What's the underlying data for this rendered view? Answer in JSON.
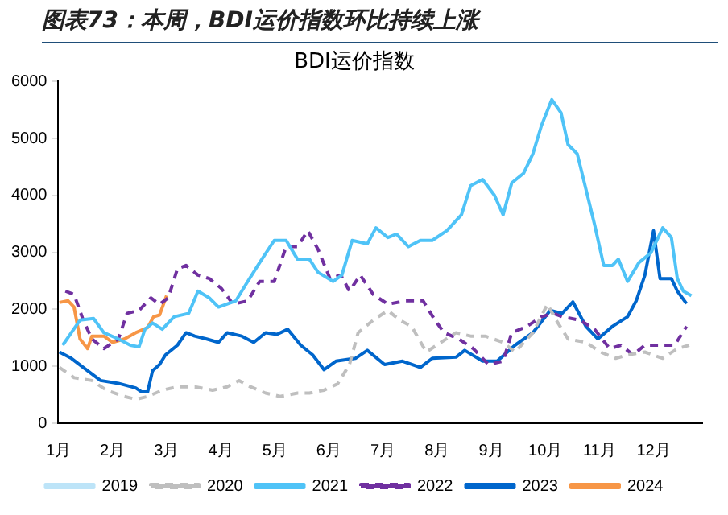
{
  "chart_data": {
    "type": "line",
    "title": "图表73：本周，BDI运价指数环比持续上涨",
    "subtitle": "BDI运价指数",
    "xlim": [
      1,
      12.9
    ],
    "xticks": [
      {
        "value": 1,
        "label": "1月"
      },
      {
        "value": 2,
        "label": "2月"
      },
      {
        "value": 3,
        "label": "3月"
      },
      {
        "value": 4,
        "label": "4月"
      },
      {
        "value": 5,
        "label": "5月"
      },
      {
        "value": 6,
        "label": "6月"
      },
      {
        "value": 7,
        "label": "7月"
      },
      {
        "value": 8,
        "label": "8月"
      },
      {
        "value": 9,
        "label": "9月"
      },
      {
        "value": 10,
        "label": "10月"
      },
      {
        "value": 11,
        "label": "11月"
      },
      {
        "value": 12,
        "label": "12月"
      }
    ],
    "ylim": [
      0,
      6000
    ],
    "yticks": [
      0,
      1000,
      2000,
      3000,
      4000,
      5000,
      6000
    ],
    "grid": false,
    "legend": "bottom",
    "marker": "none",
    "series": [
      {
        "name": "2019",
        "color": "#bde4f8",
        "line_style": "solid"
      },
      {
        "name": "2020",
        "color": "#bfbfbf",
        "line_style": "dashed",
        "x": [
          1.02,
          1.29,
          1.62,
          1.89,
          2.22,
          2.43,
          2.65,
          2.92,
          3.2,
          3.52,
          3.85,
          4.12,
          4.34,
          4.55,
          4.83,
          5.1,
          5.42,
          5.64,
          5.91,
          6.16,
          6.38,
          6.54,
          6.82,
          7.09,
          7.31,
          7.53,
          7.8,
          8.07,
          8.35,
          8.62,
          8.89,
          9.22,
          9.44,
          9.77,
          10.04,
          10.2,
          10.42,
          10.75,
          11.02,
          11.3,
          11.52,
          11.84,
          12.17,
          12.44,
          12.66
        ],
        "values": [
          980,
          800,
          750,
          580,
          470,
          420,
          470,
          580,
          640,
          640,
          580,
          640,
          750,
          640,
          530,
          470,
          530,
          530,
          580,
          690,
          1030,
          1590,
          1810,
          1980,
          1810,
          1700,
          1250,
          1420,
          1590,
          1530,
          1530,
          1420,
          1250,
          1590,
          2090,
          1810,
          1480,
          1420,
          1250,
          1140,
          1200,
          1250,
          1140,
          1310,
          1370
        ]
      },
      {
        "name": "2021",
        "color": "#4fc3f7",
        "line_style": "solid",
        "x": [
          1.08,
          1.24,
          1.4,
          1.65,
          1.84,
          2.11,
          2.33,
          2.49,
          2.6,
          2.74,
          2.92,
          3.14,
          3.41,
          3.58,
          3.79,
          3.96,
          4.28,
          4.5,
          4.72,
          4.99,
          5.21,
          5.42,
          5.64,
          5.8,
          6.08,
          6.24,
          6.43,
          6.71,
          6.87,
          7.09,
          7.25,
          7.47,
          7.69,
          7.91,
          8.18,
          8.45,
          8.62,
          8.84,
          9.06,
          9.22,
          9.38,
          9.6,
          9.77,
          9.93,
          10.12,
          10.29,
          10.42,
          10.59,
          10.75,
          10.91,
          11.08,
          11.24,
          11.35,
          11.52,
          11.73,
          11.95,
          12.17,
          12.33,
          12.44,
          12.55,
          12.7
        ],
        "values": [
          1370,
          1590,
          1810,
          1840,
          1590,
          1480,
          1370,
          1340,
          1650,
          1760,
          1650,
          1870,
          1930,
          2320,
          2200,
          2040,
          2150,
          2490,
          2820,
          3210,
          3210,
          2880,
          2880,
          2650,
          2490,
          2600,
          3210,
          3150,
          3430,
          3260,
          3320,
          3100,
          3210,
          3210,
          3380,
          3660,
          4170,
          4280,
          4000,
          3660,
          4220,
          4390,
          4730,
          5230,
          5680,
          5450,
          4890,
          4730,
          4110,
          3490,
          2770,
          2770,
          2880,
          2490,
          2820,
          2990,
          3430,
          3260,
          2540,
          2320,
          2240
        ]
      },
      {
        "name": "2022",
        "color": "#7030a0",
        "line_style": "dashed",
        "x": [
          1.13,
          1.29,
          1.46,
          1.62,
          1.84,
          2.11,
          2.27,
          2.49,
          2.71,
          2.87,
          3.03,
          3.2,
          3.36,
          3.58,
          3.79,
          4.01,
          4.23,
          4.5,
          4.72,
          4.99,
          5.21,
          5.42,
          5.61,
          5.8,
          6.02,
          6.22,
          6.38,
          6.58,
          6.82,
          7.09,
          7.42,
          7.74,
          7.96,
          8.13,
          8.4,
          8.67,
          8.95,
          9.22,
          9.38,
          9.66,
          9.93,
          10.15,
          10.31,
          10.64,
          10.91,
          11.19,
          11.4,
          11.62,
          11.84,
          12.12,
          12.39,
          12.61
        ],
        "values": [
          2320,
          2260,
          1810,
          1480,
          1310,
          1480,
          1930,
          1980,
          2200,
          2090,
          2200,
          2710,
          2770,
          2600,
          2540,
          2370,
          2090,
          2150,
          2490,
          2490,
          3100,
          3100,
          3380,
          3050,
          2540,
          2600,
          2320,
          2600,
          2260,
          2090,
          2150,
          2150,
          1810,
          1590,
          1480,
          1310,
          1030,
          1090,
          1590,
          1700,
          1870,
          1930,
          1870,
          1810,
          1650,
          1310,
          1370,
          1200,
          1370,
          1370,
          1370,
          1700
        ]
      },
      {
        "name": "2023",
        "color": "#0066cc",
        "line_style": "solid",
        "x": [
          1.02,
          1.24,
          1.46,
          1.78,
          2.11,
          2.43,
          2.54,
          2.65,
          2.74,
          2.87,
          2.98,
          3.2,
          3.36,
          3.52,
          3.74,
          3.96,
          4.12,
          4.39,
          4.61,
          4.83,
          5.04,
          5.24,
          5.48,
          5.7,
          5.91,
          6.13,
          6.49,
          6.71,
          7.03,
          7.36,
          7.69,
          7.91,
          8.35,
          8.51,
          8.84,
          9.11,
          9.44,
          9.77,
          10.09,
          10.31,
          10.51,
          10.75,
          10.97,
          11.24,
          11.52,
          11.68,
          11.84,
          12.0,
          12.12,
          12.33,
          12.44,
          12.61
        ],
        "values": [
          1250,
          1140,
          980,
          750,
          700,
          620,
          550,
          550,
          920,
          1030,
          1200,
          1370,
          1590,
          1530,
          1480,
          1420,
          1590,
          1530,
          1420,
          1590,
          1560,
          1650,
          1370,
          1200,
          940,
          1090,
          1140,
          1280,
          1030,
          1090,
          980,
          1140,
          1160,
          1280,
          1090,
          1090,
          1370,
          1590,
          1980,
          1930,
          2130,
          1700,
          1480,
          1700,
          1870,
          2150,
          2600,
          3380,
          2540,
          2540,
          2320,
          2100
        ]
      },
      {
        "name": "2024",
        "color": "#f79646",
        "line_style": "solid",
        "x": [
          1.02,
          1.18,
          1.29,
          1.4,
          1.54,
          1.62,
          1.84,
          2.0,
          2.22,
          2.43,
          2.65,
          2.76,
          2.87,
          3.0
        ],
        "values": [
          2120,
          2150,
          2040,
          1480,
          1310,
          1530,
          1530,
          1420,
          1480,
          1590,
          1680,
          1870,
          1900,
          2240
        ]
      }
    ]
  }
}
